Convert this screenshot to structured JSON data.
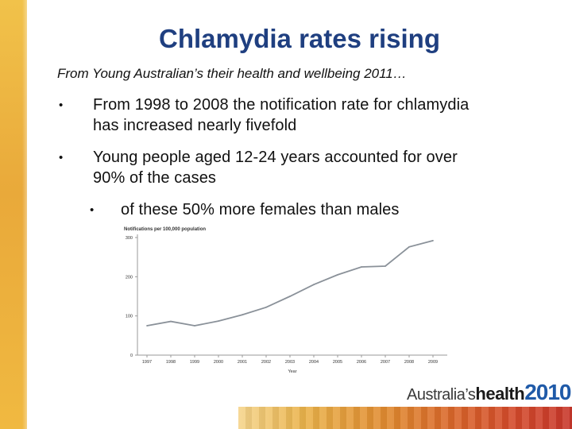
{
  "slide": {
    "title": "Chlamydia rates rising",
    "subtitle": "From Young Australian’s their health and wellbeing 2011…",
    "bullets": [
      {
        "marker": "•",
        "text": "From 1998 to 2008 the notification rate for chlamydia has increased nearly fivefold",
        "line1": "From 1998 to 2008 the notification rate for chlamydia",
        "line2": "has increased nearly fivefold"
      },
      {
        "marker": "•",
        "text": "Young people aged 12-24 years accounted for over 90% of the cases",
        "line1": "Young people aged 12-24 years accounted for over",
        "line2": "90% of the cases"
      }
    ],
    "sub_bullet": {
      "marker": "•",
      "text": "of these 50% more females than males"
    },
    "logo": {
      "part1": "Australia’s",
      "part2": "health",
      "part3": "2010"
    }
  },
  "colors": {
    "title": "#1f3f80",
    "line": "#8a9199",
    "accent_strip": "#eab03d",
    "logo_year": "#1f5aa8"
  },
  "chart_data": {
    "type": "line",
    "title": "Notifications per 100,000 population",
    "xlabel": "Year",
    "ylabel": "",
    "categories": [
      "1997",
      "1998",
      "1999",
      "2000",
      "2001",
      "2002",
      "2003",
      "2004",
      "2005",
      "2006",
      "2007",
      "2008",
      "2009"
    ],
    "series": [
      {
        "values": [
          75,
          86,
          75,
          87,
          103,
          122,
          150,
          180,
          205,
          225,
          227,
          276,
          292
        ]
      }
    ],
    "yticks": [
      0,
      100,
      200,
      300
    ],
    "ylim": [
      0,
      300
    ],
    "grid": false
  }
}
